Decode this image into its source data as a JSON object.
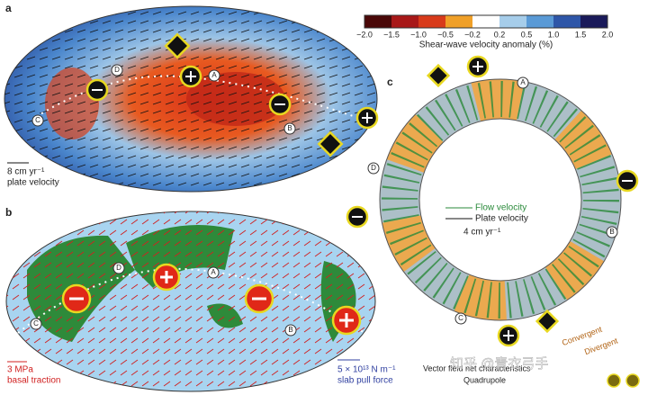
{
  "panels": {
    "a": {
      "label": "a",
      "scale_value": "8 cm yr⁻¹",
      "scale_caption": "plate velocity",
      "points": [
        "A",
        "B",
        "C",
        "D"
      ]
    },
    "b": {
      "label": "b",
      "traction_value": "3 MPa",
      "traction_caption": "basal traction",
      "slab_value": "5 × 10¹³ N m⁻¹",
      "slab_caption": "slab pull force",
      "points": [
        "A",
        "B",
        "C",
        "D"
      ]
    },
    "c": {
      "label": "c",
      "flow_legend": "Flow velocity",
      "plate_legend": "Plate velocity",
      "scale_value": "4 cm yr⁻¹",
      "points": [
        "A",
        "B",
        "C",
        "D"
      ]
    }
  },
  "colorbar": {
    "title": "Shear-wave velocity anomaly (%)",
    "ticks": [
      "−2.0",
      "−1.5",
      "−1.0",
      "−0.5",
      "−0.2",
      "0.2",
      "0.5",
      "1.0",
      "1.5",
      "2.0"
    ]
  },
  "key": {
    "title": "Vector field net characteristics",
    "quadrupole": "Quadrupole",
    "convergent": "Convergent",
    "divergent": "Divergent"
  },
  "watermark": "知乎 @青衣弓手"
}
